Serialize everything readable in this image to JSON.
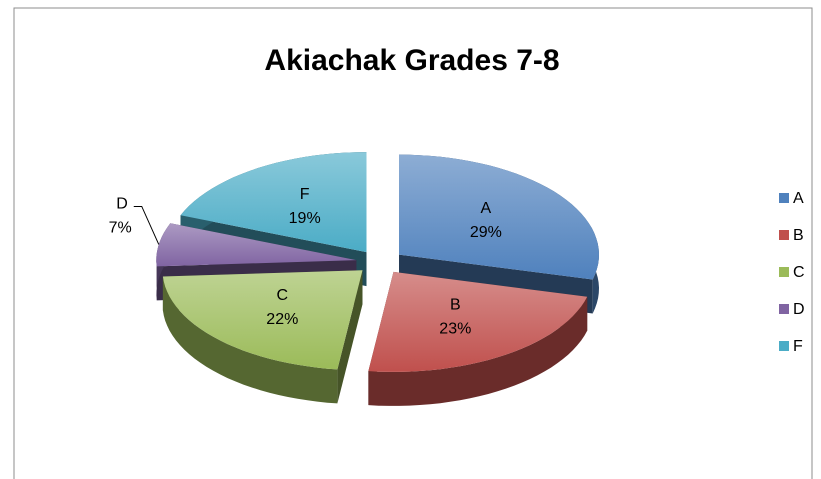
{
  "chart_data": {
    "type": "pie",
    "title": "Akiachak Grades 7-8",
    "categories": [
      "A",
      "B",
      "C",
      "D",
      "F"
    ],
    "values": [
      29,
      23,
      22,
      7,
      19
    ],
    "value_labels": [
      "29%",
      "23%",
      "22%",
      "7%",
      "19%"
    ],
    "colors": [
      "#4f81bd",
      "#c0504d",
      "#9bbb59",
      "#8064a2",
      "#4bacc6"
    ],
    "legend": "right"
  }
}
